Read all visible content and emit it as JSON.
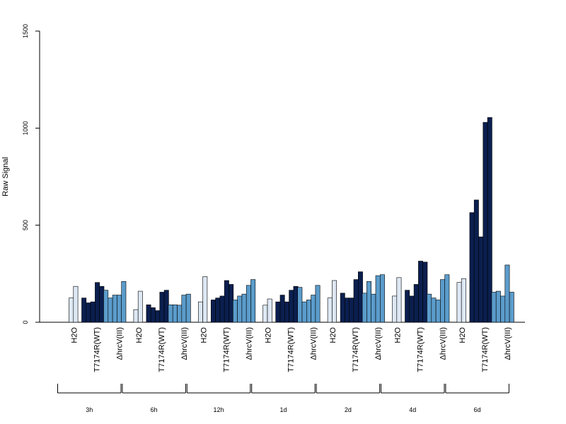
{
  "chart_data": {
    "type": "bar",
    "ylabel": "Raw Signal",
    "ylim": [
      0,
      1500
    ],
    "yticks": [
      0,
      500,
      1000,
      1500
    ],
    "group_labels": [
      "H2O",
      "T7174R(WT)",
      "ΔhrcV(III)"
    ],
    "group_colors": [
      "#dde8f4",
      "#0b1f4f",
      "#5b9ccb"
    ],
    "timepoints": [
      {
        "label": "3h",
        "H2O": [
          125,
          185
        ],
        "WT": [
          125,
          100,
          105,
          205,
          185
        ],
        "hrcV": [
          165,
          125,
          140,
          140,
          210
        ]
      },
      {
        "label": "6h",
        "H2O": [
          65,
          160
        ],
        "WT": [
          90,
          75,
          60,
          155,
          165
        ],
        "hrcV": [
          90,
          90,
          88,
          140,
          145
        ]
      },
      {
        "label": "12h",
        "H2O": [
          105,
          235
        ],
        "WT": [
          115,
          125,
          135,
          215,
          195
        ],
        "hrcV": [
          115,
          135,
          145,
          190,
          220
        ]
      },
      {
        "label": "1d",
        "H2O": [
          88,
          120
        ],
        "WT": [
          105,
          140,
          105,
          165,
          185
        ],
        "hrcV": [
          180,
          105,
          115,
          140,
          190
        ]
      },
      {
        "label": "2d",
        "H2O": [
          125,
          215
        ],
        "WT": [
          150,
          125,
          125,
          220,
          260
        ],
        "hrcV": [
          150,
          210,
          145,
          240,
          245
        ]
      },
      {
        "label": "4d",
        "H2O": [
          135,
          230
        ],
        "WT": [
          165,
          135,
          195,
          315,
          310
        ],
        "hrcV": [
          145,
          125,
          115,
          220,
          245
        ]
      },
      {
        "label": "6d",
        "H2O": [
          205,
          225
        ],
        "WT": [
          565,
          630,
          440,
          1030,
          1055
        ],
        "hrcV": [
          155,
          160,
          135,
          295,
          155
        ]
      }
    ]
  }
}
